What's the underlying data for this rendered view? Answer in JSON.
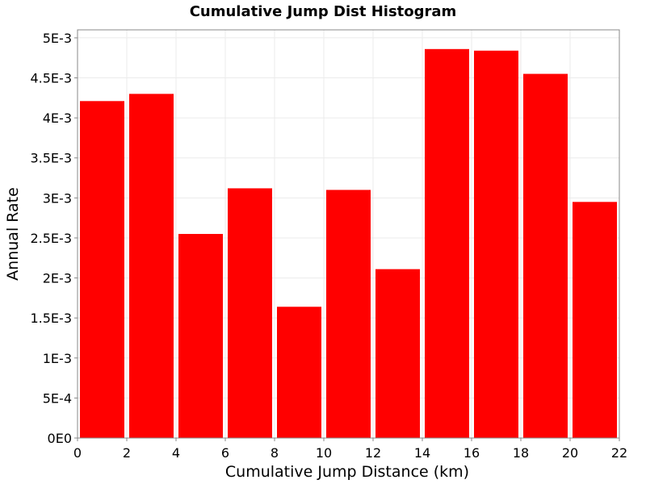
{
  "chart_data": {
    "type": "bar",
    "title": "Cumulative Jump Dist Histogram",
    "xlabel": "Cumulative Jump Distance (km)",
    "ylabel": "Annual Rate",
    "xlim": [
      0,
      22
    ],
    "ylim": [
      0,
      0.0051
    ],
    "x_ticks": [
      0,
      2,
      4,
      6,
      8,
      10,
      12,
      14,
      16,
      18,
      20,
      22
    ],
    "x_tick_labels": [
      "0",
      "2",
      "4",
      "6",
      "8",
      "10",
      "12",
      "14",
      "16",
      "18",
      "20",
      "22"
    ],
    "y_ticks": [
      0,
      0.0005,
      0.001,
      0.0015,
      0.002,
      0.0025,
      0.003,
      0.0035,
      0.004,
      0.0045,
      0.005
    ],
    "y_tick_labels": [
      "0E0",
      "5E-4",
      "1E-3",
      "1.5E-3",
      "2E-3",
      "2.5E-3",
      "3E-3",
      "3.5E-3",
      "4E-3",
      "4.5E-3",
      "5E-3"
    ],
    "bar_width": 2,
    "bins": [
      {
        "x_start": 0,
        "value": 0.00421
      },
      {
        "x_start": 2,
        "value": 0.0043
      },
      {
        "x_start": 4,
        "value": 0.00255
      },
      {
        "x_start": 6,
        "value": 0.00312
      },
      {
        "x_start": 8,
        "value": 0.00164
      },
      {
        "x_start": 10,
        "value": 0.0031
      },
      {
        "x_start": 12,
        "value": 0.00211
      },
      {
        "x_start": 14,
        "value": 0.00486
      },
      {
        "x_start": 16,
        "value": 0.00484
      },
      {
        "x_start": 18,
        "value": 0.00455
      },
      {
        "x_start": 20,
        "value": 0.00295
      }
    ],
    "grid": true,
    "bar_color": "#ff0000",
    "grid_color": "#ebebeb",
    "axis_color": "#888888"
  }
}
